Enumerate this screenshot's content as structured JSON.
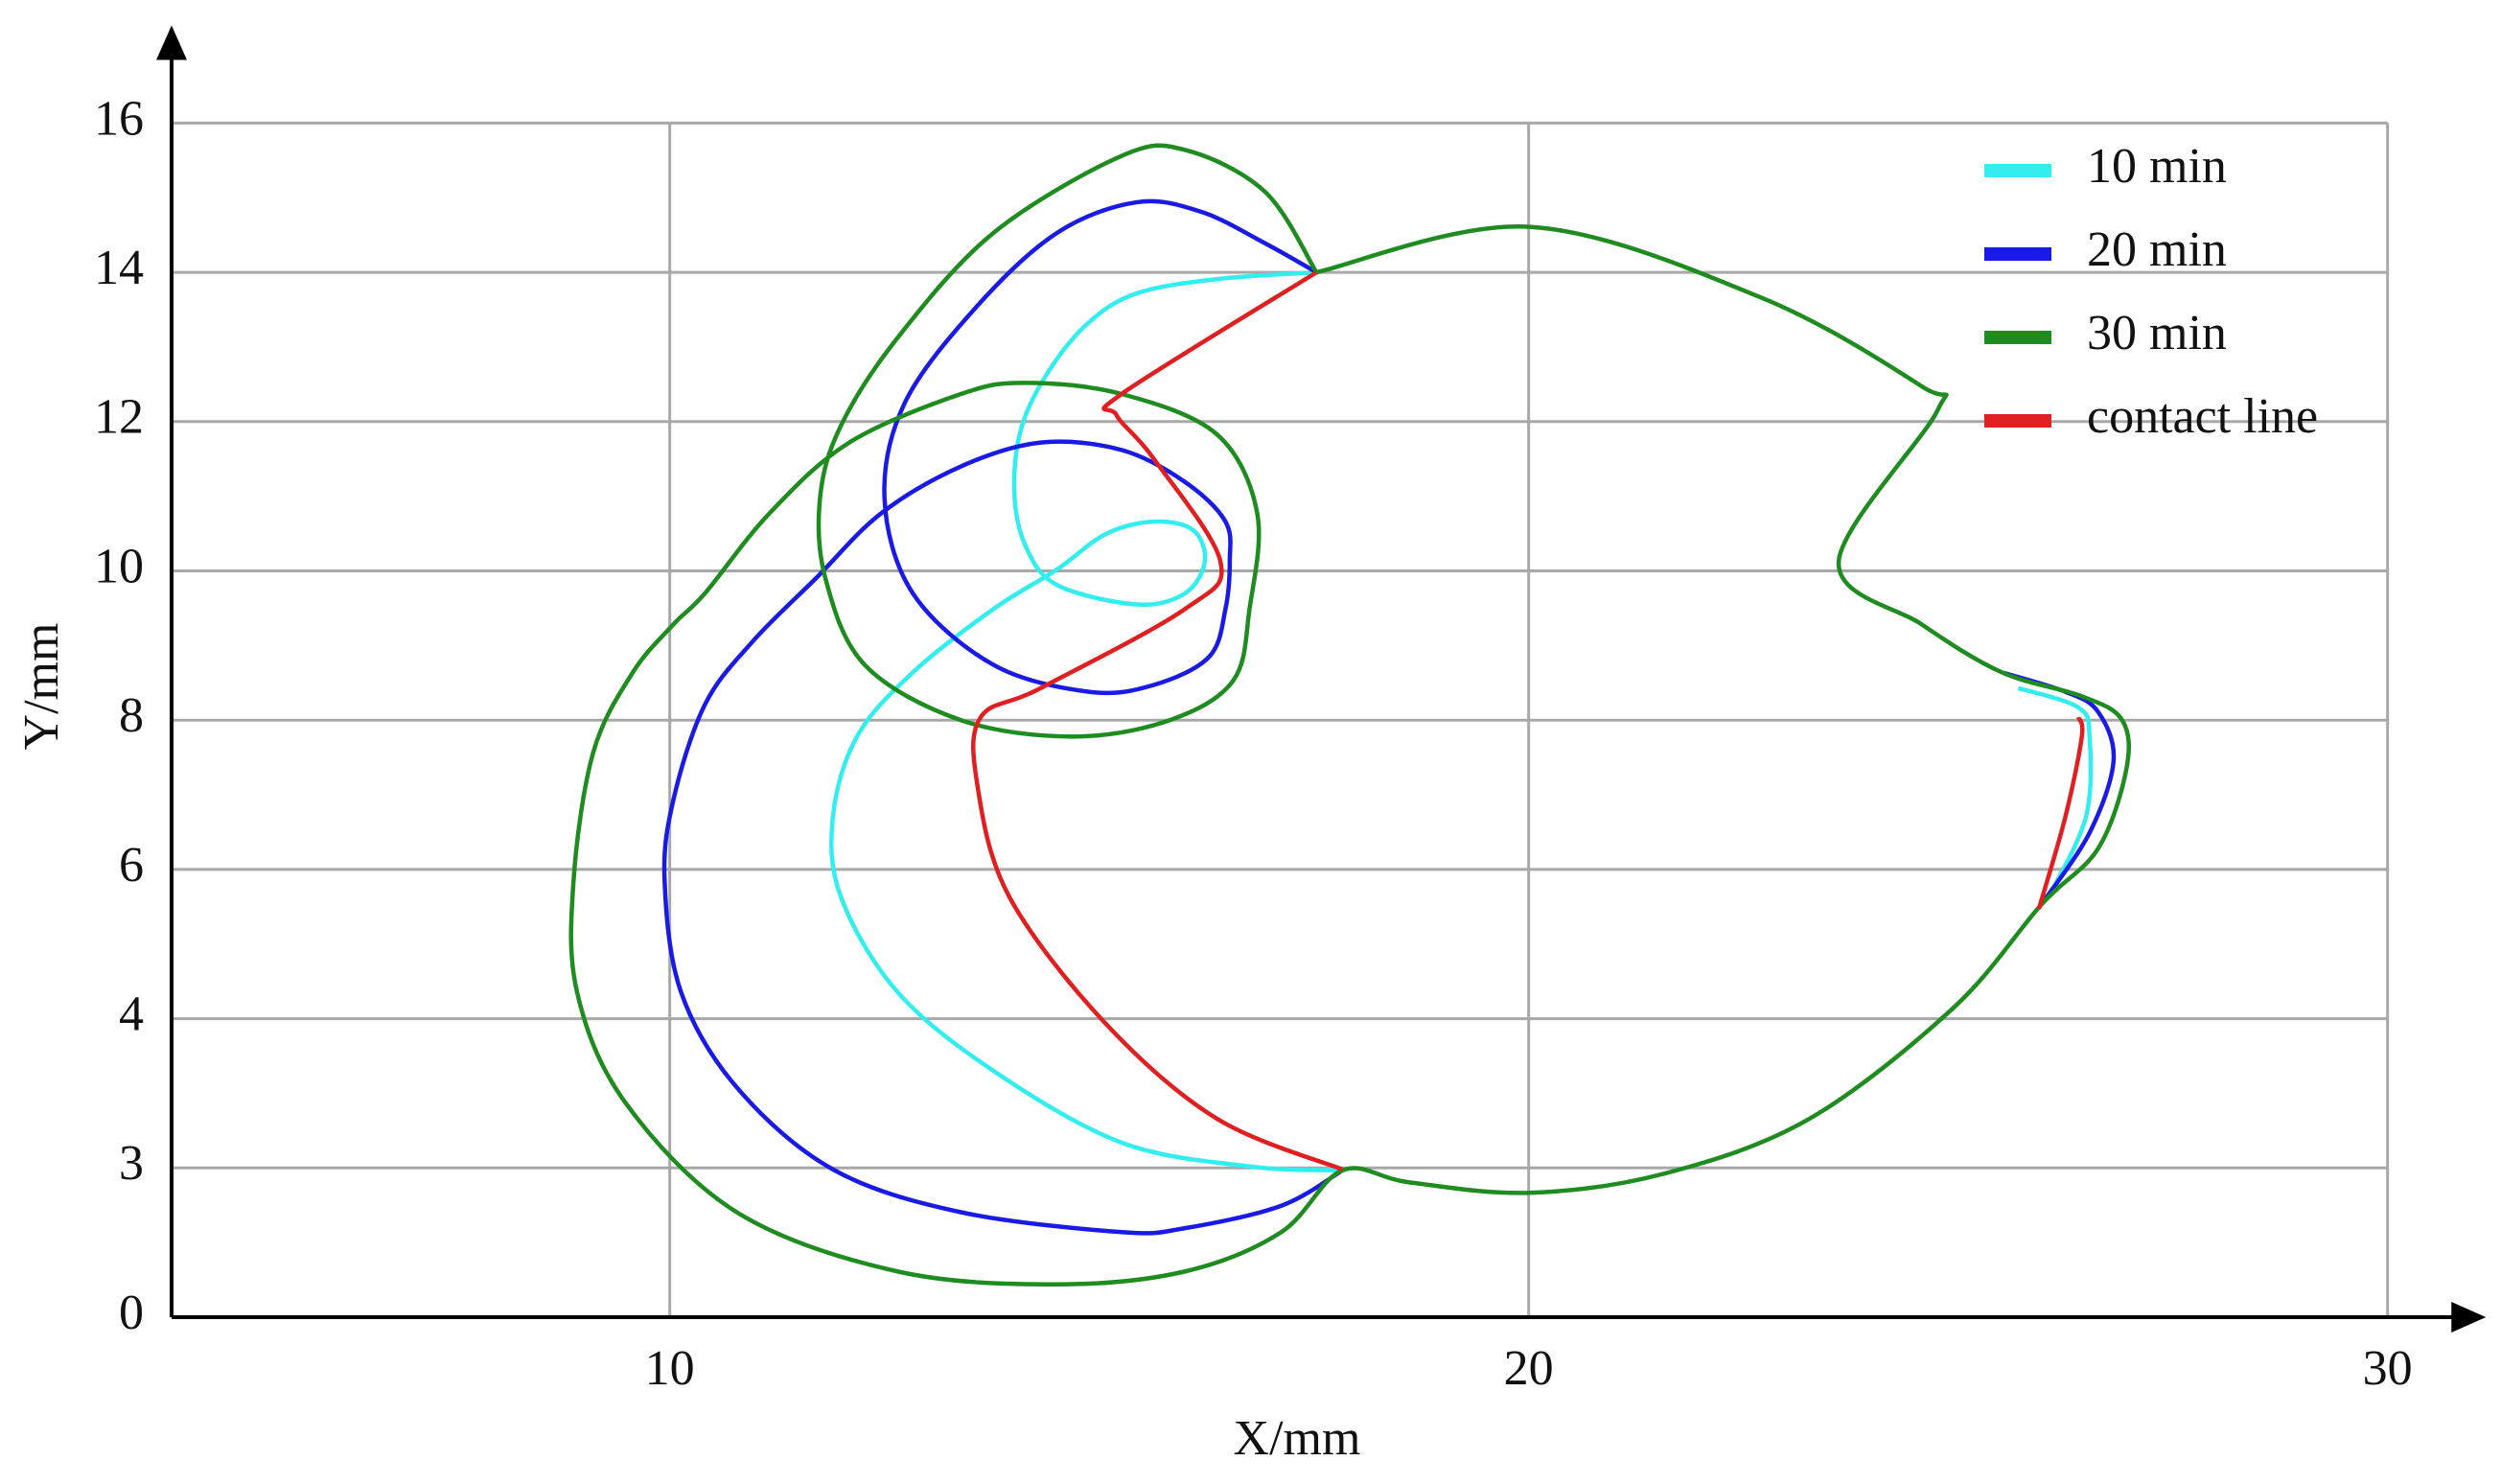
{
  "chart_data": {
    "type": "line",
    "xlabel": "X/mm",
    "ylabel": "Y/mm",
    "xlim": [
      4.2,
      31.1
    ],
    "ylim": [
      0,
      17
    ],
    "xticks": [
      10,
      20,
      30
    ],
    "yticks": [
      0,
      3,
      4,
      6,
      8,
      10,
      12,
      14,
      16
    ],
    "grid": true,
    "legend": "upper right",
    "series": [
      {
        "name": "10 min",
        "color": "#33eeee",
        "x": [
          17.53,
          16.37,
          15.44,
          14.88,
          14.42,
          14.1,
          14.01,
          14.14,
          14.51,
          15.44,
          16.0,
          16.23,
          16.09,
          15.63,
          15.07,
          14.51,
          13.77,
          12.83,
          12.18,
          11.9,
          11.99,
          12.65,
          13.77,
          15.26,
          16.75,
          17.83,
          null,
          25.7,
          26.4,
          26.53,
          26.49,
          26.06
        ],
        "y": [
          14.0,
          13.91,
          13.72,
          13.33,
          12.69,
          11.94,
          11.09,
          10.34,
          9.81,
          9.55,
          9.7,
          10.13,
          10.55,
          10.66,
          10.49,
          10.02,
          9.49,
          8.64,
          7.78,
          6.71,
          5.64,
          4.36,
          3.65,
          3.17,
          3.01,
          2.95,
          null,
          8.43,
          8.17,
          7.78,
          6.71,
          5.64
        ]
      },
      {
        "name": "20 min",
        "color": "#1a1ae6",
        "x": [
          17.83,
          17.12,
          16.0,
          15.26,
          13.39,
          11.9,
          10.78,
          10.13,
          9.94,
          10.04,
          10.41,
          10.97,
          11.71,
          12.46,
          13.39,
          14.32,
          15.26,
          16.0,
          16.47,
          16.52,
          16.47,
          16.28,
          15.63,
          14.88,
          13.77,
          12.83,
          12.5,
          12.74,
          13.58,
          14.51,
          15.44,
          16.19,
          16.93,
          17.53,
          null,
          25.51,
          26.25,
          26.63,
          26.81,
          26.53,
          25.97
        ],
        "y": [
          2.95,
          2.24,
          1.79,
          1.71,
          2.11,
          2.97,
          3.54,
          4.36,
          5.85,
          6.92,
          8.21,
          9.06,
          9.91,
          10.77,
          11.4,
          11.72,
          11.62,
          11.19,
          10.66,
          10.13,
          9.49,
          8.85,
          8.47,
          8.38,
          8.74,
          9.7,
          10.98,
          12.26,
          13.55,
          14.53,
          14.94,
          14.81,
          14.39,
          14.0,
          null,
          8.64,
          8.38,
          8.11,
          7.46,
          6.49,
          5.53
        ]
      },
      {
        "name": "30 min",
        "color": "#1e8c1e",
        "x": [
          17.53,
          20.01,
          22.71,
          24.58,
          24.76,
          23.61,
          24.58,
          25.51,
          26.44,
          26.91,
          26.96,
          26.63,
          25.97,
          24.95,
          23.27,
          21.59,
          20.01,
          18.61,
          17.83,
          17.12,
          16.0,
          14.51,
          12.65,
          10.78,
          9.48,
          8.92,
          8.88,
          9.11,
          9.57,
          10.04,
          10.41,
          11.16,
          12.09,
          13.39,
          14.14,
          15.26,
          16.37,
          16.84,
          16.75,
          16.56,
          15.82,
          14.7,
          13.39,
          12.27,
          11.81,
          11.75,
          11.99,
          12.65,
          13.77,
          15.26,
          16.0,
          16.93,
          17.53
        ],
        "y": [
          14.0,
          14.61,
          13.66,
          12.47,
          12.15,
          10.13,
          9.28,
          8.64,
          8.32,
          8.0,
          7.35,
          6.28,
          5.53,
          4.15,
          3.33,
          2.89,
          2.5,
          2.71,
          2.95,
          1.71,
          0.92,
          0.66,
          0.92,
          2.11,
          3.44,
          4.36,
          5.85,
          7.57,
          8.64,
          9.28,
          9.7,
          10.77,
          11.72,
          12.37,
          12.52,
          12.37,
          11.83,
          10.77,
          9.49,
          8.53,
          8.0,
          7.78,
          8.0,
          8.74,
          9.91,
          10.98,
          11.94,
          13.12,
          14.53,
          15.56,
          15.64,
          15.08,
          14.0
        ]
      },
      {
        "name": "contact line",
        "color": "#e02020",
        "x": [
          17.53,
          15.26,
          15.2,
          15.63,
          16.41,
          16.0,
          14.32,
          13.62,
          13.58,
          13.95,
          15.07,
          16.37,
          17.83,
          null,
          26.4,
          26.44,
          26.25,
          25.94
        ],
        "y": [
          14.0,
          12.37,
          12.09,
          11.51,
          10.13,
          9.49,
          8.43,
          8.04,
          7.14,
          5.64,
          3.97,
          3.33,
          2.97,
          null,
          8.04,
          7.78,
          6.71,
          5.47
        ]
      }
    ]
  }
}
